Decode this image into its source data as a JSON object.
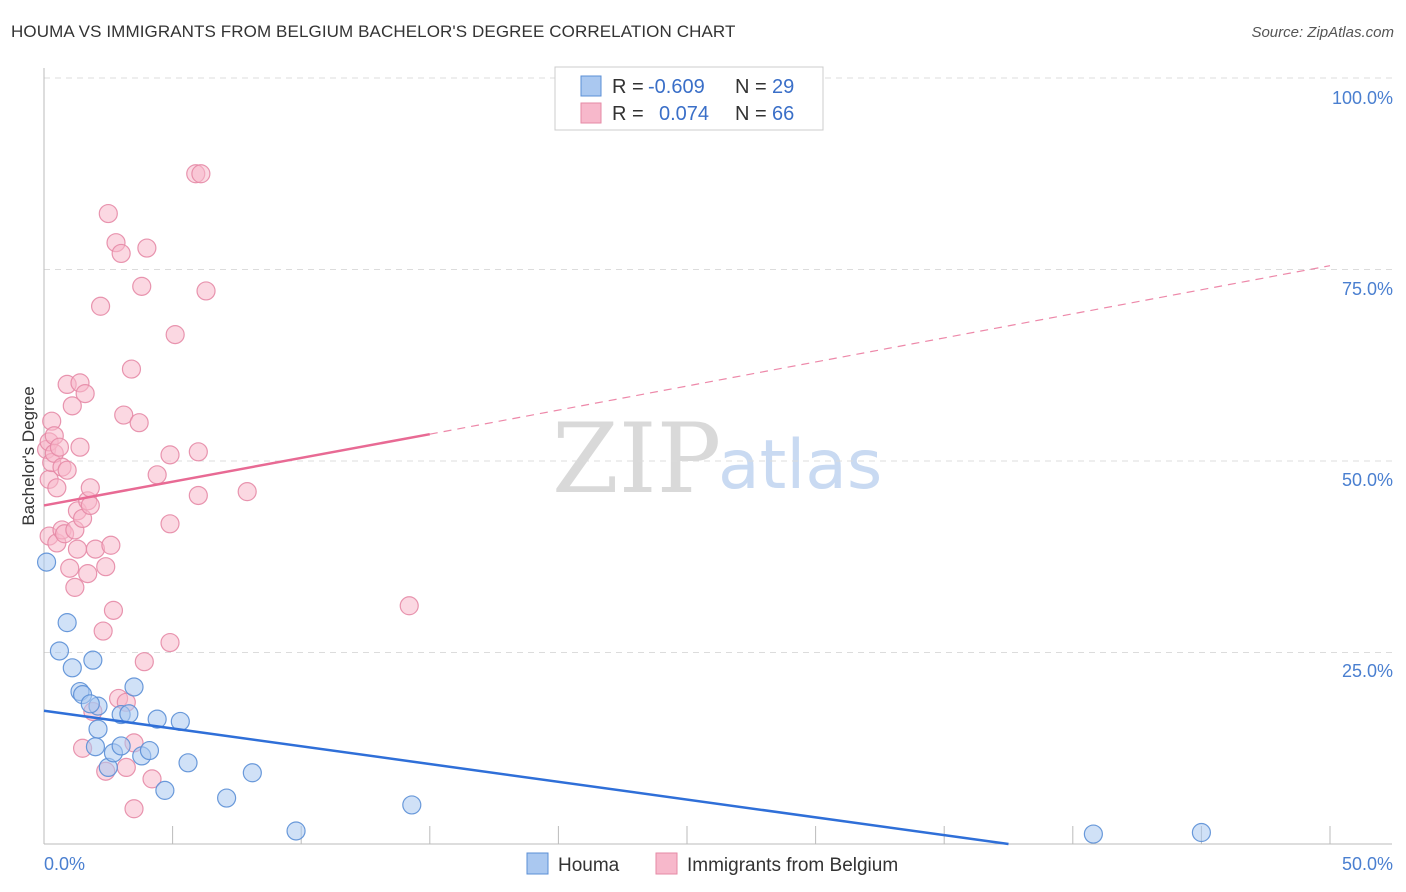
{
  "header": {
    "title": "HOUMA VS IMMIGRANTS FROM BELGIUM BACHELOR'S DEGREE CORRELATION CHART",
    "source": "Source: ZipAtlas.com"
  },
  "legend": {
    "rows": [
      {
        "r_label": "R =",
        "r_value": "-0.609",
        "n_label": "N =",
        "n_value": "29",
        "color": "#aac8f0"
      },
      {
        "r_label": "R =",
        "r_value": "0.074",
        "n_label": "N =",
        "n_value": "66",
        "color": "#f7b8cb"
      }
    ]
  },
  "watermark": {
    "zip": "ZIP",
    "atlas": "atlas"
  },
  "colors": {
    "blue_fill": "#aac8f0",
    "blue_stroke": "#5b8fd6",
    "blue_line": "#2f6fd8",
    "pink_fill": "#f7b8cb",
    "pink_stroke": "#e68aa6",
    "pink_line": "#e86a94",
    "grid": "#dcdcdc",
    "axis_text": "#4a7fd0"
  },
  "chart_data": {
    "type": "scatter",
    "title": "HOUMA VS IMMIGRANTS FROM BELGIUM BACHELOR'S DEGREE CORRELATION CHART",
    "xlabel": "",
    "ylabel": "Bachelor's Degree",
    "xlim": [
      0,
      50
    ],
    "ylim": [
      0,
      100
    ],
    "x_tick_labels": [
      "0.0%",
      "50.0%"
    ],
    "y_tick_labels": [
      "100.0%",
      "75.0%",
      "50.0%",
      "25.0%"
    ],
    "y_ticks": [
      100,
      75,
      50,
      25
    ],
    "grid": true,
    "series": [
      {
        "name": "Houma",
        "r": -0.609,
        "n": 29,
        "trend": {
          "x": [
            0,
            37.5
          ],
          "y": [
            17.4,
            0
          ]
        },
        "points": [
          {
            "x": 0.1,
            "y": 36.8
          },
          {
            "x": 0.6,
            "y": 25.2
          },
          {
            "x": 0.9,
            "y": 28.9
          },
          {
            "x": 1.1,
            "y": 23.0
          },
          {
            "x": 1.4,
            "y": 19.9
          },
          {
            "x": 1.5,
            "y": 19.5
          },
          {
            "x": 1.9,
            "y": 24.0
          },
          {
            "x": 2.1,
            "y": 18.0
          },
          {
            "x": 1.8,
            "y": 18.3
          },
          {
            "x": 2.0,
            "y": 12.7
          },
          {
            "x": 2.1,
            "y": 15.0
          },
          {
            "x": 2.5,
            "y": 10.0
          },
          {
            "x": 2.7,
            "y": 11.9
          },
          {
            "x": 3.0,
            "y": 12.8
          },
          {
            "x": 3.0,
            "y": 16.9
          },
          {
            "x": 3.3,
            "y": 17.0
          },
          {
            "x": 3.5,
            "y": 20.5
          },
          {
            "x": 3.8,
            "y": 11.5
          },
          {
            "x": 4.1,
            "y": 12.2
          },
          {
            "x": 4.4,
            "y": 16.3
          },
          {
            "x": 4.7,
            "y": 7.0
          },
          {
            "x": 5.3,
            "y": 16.0
          },
          {
            "x": 5.6,
            "y": 10.6
          },
          {
            "x": 7.1,
            "y": 6.0
          },
          {
            "x": 8.1,
            "y": 9.3
          },
          {
            "x": 9.8,
            "y": 1.7
          },
          {
            "x": 14.3,
            "y": 5.1
          },
          {
            "x": 40.8,
            "y": 1.3
          },
          {
            "x": 45.0,
            "y": 1.5
          }
        ]
      },
      {
        "name": "Immigrants from Belgium",
        "r": 0.074,
        "n": 66,
        "trend": {
          "x": [
            0,
            15
          ],
          "y": [
            44.2,
            53.5
          ]
        },
        "trend_extended": {
          "x": [
            15,
            50
          ],
          "y": [
            53.5,
            75.5
          ]
        },
        "points": [
          {
            "x": 0.1,
            "y": 51.5
          },
          {
            "x": 0.2,
            "y": 52.5
          },
          {
            "x": 0.2,
            "y": 47.6
          },
          {
            "x": 0.2,
            "y": 40.2
          },
          {
            "x": 0.3,
            "y": 49.8
          },
          {
            "x": 0.3,
            "y": 55.2
          },
          {
            "x": 0.4,
            "y": 53.3
          },
          {
            "x": 0.4,
            "y": 51.0
          },
          {
            "x": 0.5,
            "y": 46.5
          },
          {
            "x": 0.5,
            "y": 39.3
          },
          {
            "x": 0.6,
            "y": 51.8
          },
          {
            "x": 0.7,
            "y": 49.2
          },
          {
            "x": 0.7,
            "y": 41.0
          },
          {
            "x": 0.8,
            "y": 40.5
          },
          {
            "x": 0.9,
            "y": 60.0
          },
          {
            "x": 0.9,
            "y": 48.8
          },
          {
            "x": 1.0,
            "y": 36.0
          },
          {
            "x": 1.1,
            "y": 57.2
          },
          {
            "x": 1.2,
            "y": 41.0
          },
          {
            "x": 1.2,
            "y": 33.5
          },
          {
            "x": 1.3,
            "y": 38.5
          },
          {
            "x": 1.3,
            "y": 43.5
          },
          {
            "x": 1.4,
            "y": 51.8
          },
          {
            "x": 1.4,
            "y": 60.2
          },
          {
            "x": 1.5,
            "y": 42.5
          },
          {
            "x": 1.5,
            "y": 12.5
          },
          {
            "x": 1.6,
            "y": 58.8
          },
          {
            "x": 1.7,
            "y": 44.8
          },
          {
            "x": 1.7,
            "y": 35.3
          },
          {
            "x": 1.8,
            "y": 46.5
          },
          {
            "x": 1.8,
            "y": 44.2
          },
          {
            "x": 1.9,
            "y": 17.3
          },
          {
            "x": 2.0,
            "y": 38.5
          },
          {
            "x": 2.2,
            "y": 70.2
          },
          {
            "x": 2.3,
            "y": 27.8
          },
          {
            "x": 2.4,
            "y": 36.2
          },
          {
            "x": 2.4,
            "y": 9.5
          },
          {
            "x": 2.5,
            "y": 82.3
          },
          {
            "x": 2.6,
            "y": 39.0
          },
          {
            "x": 2.7,
            "y": 30.5
          },
          {
            "x": 2.8,
            "y": 78.5
          },
          {
            "x": 2.9,
            "y": 19.0
          },
          {
            "x": 3.0,
            "y": 77.1
          },
          {
            "x": 3.1,
            "y": 56.0
          },
          {
            "x": 3.2,
            "y": 10.0
          },
          {
            "x": 3.2,
            "y": 18.5
          },
          {
            "x": 3.4,
            "y": 62.0
          },
          {
            "x": 3.5,
            "y": 4.6
          },
          {
            "x": 3.5,
            "y": 13.2
          },
          {
            "x": 3.7,
            "y": 55.0
          },
          {
            "x": 3.8,
            "y": 72.8
          },
          {
            "x": 3.9,
            "y": 23.8
          },
          {
            "x": 4.0,
            "y": 77.8
          },
          {
            "x": 4.2,
            "y": 8.5
          },
          {
            "x": 4.4,
            "y": 48.2
          },
          {
            "x": 4.9,
            "y": 50.8
          },
          {
            "x": 4.9,
            "y": 41.8
          },
          {
            "x": 4.9,
            "y": 26.3
          },
          {
            "x": 5.1,
            "y": 66.5
          },
          {
            "x": 5.9,
            "y": 87.5
          },
          {
            "x": 6.0,
            "y": 45.5
          },
          {
            "x": 6.0,
            "y": 51.2
          },
          {
            "x": 6.1,
            "y": 87.5
          },
          {
            "x": 6.3,
            "y": 72.2
          },
          {
            "x": 7.9,
            "y": 46.0
          },
          {
            "x": 14.2,
            "y": 31.1
          }
        ]
      }
    ]
  },
  "bottom_legend": {
    "items": [
      {
        "label": "Houma"
      },
      {
        "label": "Immigrants from Belgium"
      }
    ]
  }
}
